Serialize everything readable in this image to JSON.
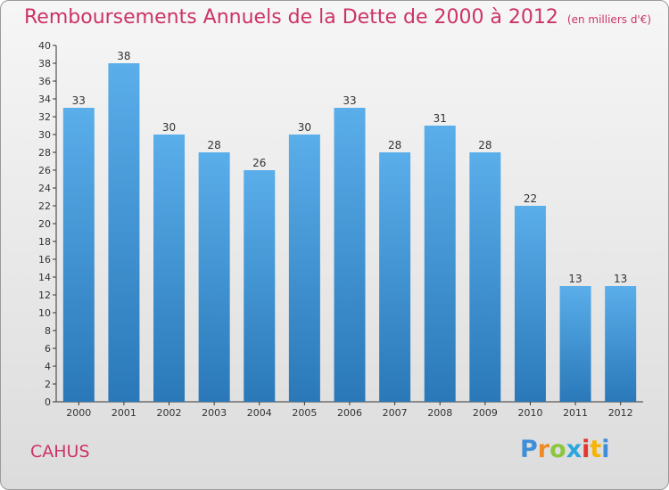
{
  "title": "Remboursements Annuels de la Dette de 2000 à 2012",
  "subtitle": "(en milliers d'€)",
  "place_name": "CAHUS",
  "logo_text": "Proxiti",
  "colors": {
    "title": "#cc3366",
    "bar_top": "#5aaeea",
    "bar_bottom": "#2a78b8",
    "axis": "#333333",
    "tick_text": "#333333"
  },
  "chart_data": {
    "type": "bar",
    "title": "Remboursements Annuels de la Dette de 2000 à 2012",
    "subtitle": "(en milliers d'€)",
    "categories": [
      "2000",
      "2001",
      "2002",
      "2003",
      "2004",
      "2005",
      "2006",
      "2007",
      "2008",
      "2009",
      "2010",
      "2011",
      "2012"
    ],
    "values": [
      33,
      38,
      30,
      28,
      26,
      30,
      33,
      28,
      31,
      28,
      22,
      13,
      13
    ],
    "ylim": [
      0,
      40
    ],
    "yticks": [
      0,
      2,
      4,
      6,
      8,
      10,
      12,
      14,
      16,
      18,
      20,
      22,
      24,
      26,
      28,
      30,
      32,
      34,
      36,
      38,
      40
    ],
    "grid": false,
    "data_labels": true
  }
}
